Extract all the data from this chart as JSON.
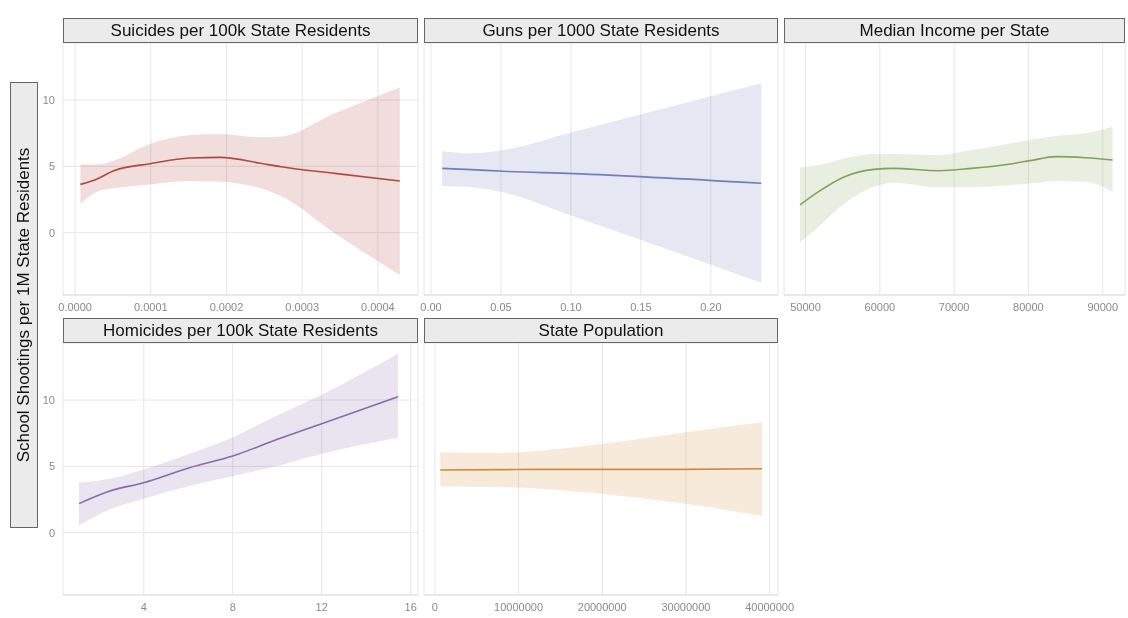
{
  "chart_data": [
    {
      "type": "line",
      "title": "Suicides per 100k State Residents",
      "ylabel": "School Shootings per 1M State Residents",
      "xlim": [
        -1.6e-05,
        0.000453
      ],
      "xticks": [
        {
          "value": 0,
          "label": "0.0000"
        },
        {
          "value": 0.0001,
          "label": "0.0001"
        },
        {
          "value": 0.0002,
          "label": "0.0002"
        },
        {
          "value": 0.0003,
          "label": "0.0003"
        },
        {
          "value": 0.0004,
          "label": "0.0004"
        }
      ],
      "ylim": [
        -4.7,
        14.3
      ],
      "yticks": [
        0,
        5,
        10
      ],
      "grid": true,
      "marker": "none",
      "line_style": "solid",
      "series": [
        {
          "color": "#b04a3f",
          "x": [
            7e-06,
            2.9e-05,
            5.1e-05,
            9.9e-05,
            0.000152,
            0.000192,
            0.000245,
            0.000272,
            0.000343,
            0.000429
          ],
          "values": [
            3.64,
            4.05,
            4.67,
            5.2,
            5.63,
            5.68,
            5.23,
            4.97,
            4.47,
            3.89
          ],
          "lower": [
            2.16,
            3.09,
            3.34,
            3.64,
            3.89,
            3.84,
            3.34,
            2.76,
            -0.05,
            -3.19
          ],
          "upper": [
            5.13,
            5.13,
            5.43,
            6.68,
            7.36,
            7.44,
            7.19,
            7.24,
            9.0,
            10.95
          ]
        }
      ]
    },
    {
      "type": "line",
      "title": "Guns per 1000 State Residents",
      "xlim": [
        -0.005,
        0.248
      ],
      "xticks": [
        {
          "value": 0,
          "label": "0.00"
        },
        {
          "value": 0.05,
          "label": "0.05"
        },
        {
          "value": 0.1,
          "label": "0.10"
        },
        {
          "value": 0.15,
          "label": "0.15"
        },
        {
          "value": 0.2,
          "label": "0.20"
        }
      ],
      "ylim": [
        -4.7,
        14.3
      ],
      "yticks": [
        0,
        5,
        10
      ],
      "tick_labels": "x",
      "grid": true,
      "marker": "none",
      "line_style": "solid",
      "series": [
        {
          "color": "#6f80b8",
          "x": [
            0.008,
            0.029,
            0.052,
            0.102,
            0.236
          ],
          "values": [
            4.85,
            4.75,
            4.63,
            4.45,
            3.72
          ],
          "lower": [
            3.52,
            3.42,
            3.02,
            1.21,
            -3.77
          ],
          "upper": [
            6.16,
            5.98,
            6.23,
            7.6,
            11.26
          ]
        }
      ]
    },
    {
      "type": "line",
      "title": "Median Income per State",
      "xlim": [
        47100,
        93000
      ],
      "xticks": [
        50000,
        60000,
        70000,
        80000,
        90000
      ],
      "ylim": [
        -4.7,
        14.3
      ],
      "yticks": [
        0,
        5,
        10
      ],
      "tick_labels": "x",
      "grid": true,
      "marker": "none",
      "line_style": "solid",
      "series": [
        {
          "color": "#7fa457",
          "x": [
            49250,
            51750,
            55260,
            59200,
            61830,
            67960,
            72340,
            77600,
            80230,
            83740,
            87680,
            91320
          ],
          "values": [
            2.09,
            3.09,
            4.22,
            4.77,
            4.85,
            4.67,
            4.85,
            5.18,
            5.43,
            5.73,
            5.65,
            5.48
          ],
          "lower": [
            -0.75,
            0.45,
            2.21,
            3.47,
            3.77,
            3.42,
            3.42,
            3.59,
            3.7,
            3.89,
            3.84,
            3.09
          ],
          "upper": [
            4.92,
            5.1,
            5.6,
            5.93,
            5.93,
            5.85,
            6.23,
            6.73,
            7.0,
            7.29,
            7.49,
            7.99
          ]
        }
      ]
    },
    {
      "type": "line",
      "title": "Homicides per 100k State Residents",
      "xlim": [
        0.37,
        16.33
      ],
      "xticks": [
        4,
        8,
        12,
        16
      ],
      "ylim": [
        -4.7,
        14.3
      ],
      "yticks": [
        0,
        5,
        10
      ],
      "grid": true,
      "marker": "none",
      "line_style": "solid",
      "series": [
        {
          "color": "#8a6aac",
          "x": [
            1.09,
            2.48,
            4,
            6.06,
            8,
            10.01,
            12,
            15.43
          ],
          "values": [
            2.19,
            3.14,
            3.77,
            4.9,
            5.78,
            7.04,
            8.22,
            10.25
          ],
          "lower": [
            0.55,
            1.76,
            2.56,
            3.52,
            4.27,
            5.03,
            5.95,
            7.16
          ],
          "upper": [
            3.77,
            4.07,
            4.77,
            5.95,
            7.2,
            8.84,
            10.4,
            13.49
          ]
        }
      ]
    },
    {
      "type": "line",
      "title": "State Population",
      "xlim": [
        -1300000,
        41000000
      ],
      "xticks": [
        0,
        10000000,
        20000000,
        30000000,
        40000000
      ],
      "ylim": [
        -4.7,
        14.3
      ],
      "yticks": [
        0,
        5,
        10
      ],
      "tick_labels": "x",
      "grid": true,
      "marker": "none",
      "line_style": "solid",
      "series": [
        {
          "color": "#d08a3a",
          "x": [
            640000,
            7700000,
            12500000,
            19800000,
            29800000,
            39100000
          ],
          "values": [
            4.72,
            4.75,
            4.77,
            4.77,
            4.77,
            4.82
          ],
          "lower": [
            3.49,
            3.44,
            3.32,
            2.94,
            2.19,
            1.26
          ],
          "upper": [
            6.06,
            6.01,
            6.18,
            6.68,
            7.56,
            8.32
          ]
        }
      ]
    }
  ]
}
